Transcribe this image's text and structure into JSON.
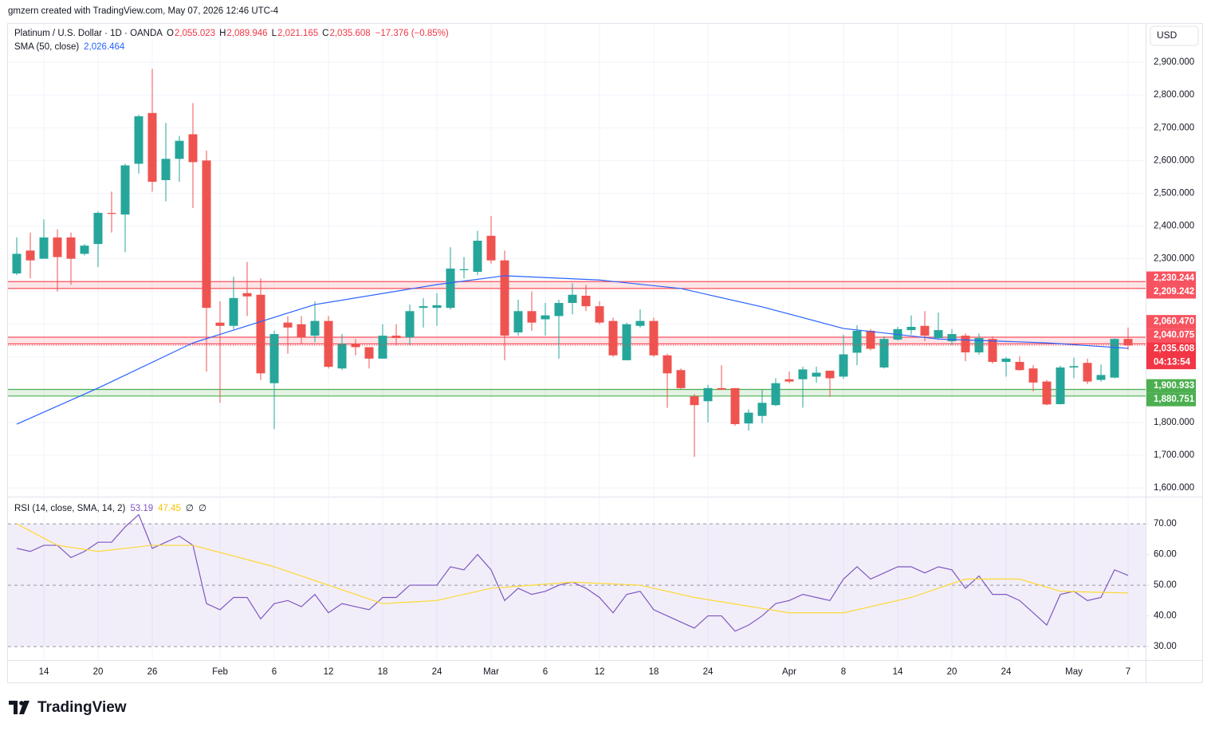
{
  "header": "gmzern created with TradingView.com, May 07, 2026 12:46 UTC-4",
  "brand": "TradingView",
  "chart_data": {
    "type": "candlestick",
    "currency": "USD",
    "categories": [
      null,
      null,
      "14",
      null,
      null,
      null,
      "20",
      null,
      null,
      null,
      "26",
      null,
      null,
      null,
      null,
      "Feb",
      null,
      null,
      null,
      "6",
      null,
      null,
      null,
      "12",
      null,
      null,
      null,
      "18",
      null,
      null,
      null,
      "24",
      null,
      null,
      null,
      "Mar",
      null,
      null,
      null,
      "6",
      null,
      null,
      null,
      "12",
      null,
      null,
      null,
      "18",
      null,
      null,
      null,
      "24",
      null,
      null,
      null,
      null,
      null,
      "Apr",
      null,
      null,
      null,
      "8",
      null,
      null,
      null,
      "14",
      null,
      null,
      null,
      "20",
      null,
      null,
      null,
      "24",
      null,
      null,
      null,
      null,
      "May",
      null,
      null,
      null,
      "7"
    ],
    "open": [
      2255,
      2325,
      2300,
      2365,
      2365,
      2315,
      2345,
      2440,
      2435,
      2590,
      2745,
      2540,
      2605,
      2680,
      2600,
      2105,
      2095,
      2195,
      2190,
      1920,
      2105,
      2100,
      2065,
      2110,
      1965,
      2040,
      2030,
      1995,
      2065,
      2060,
      2150,
      2150,
      2150,
      2265,
      2260,
      2370,
      2295,
      2075,
      2140,
      2115,
      2125,
      2165,
      2187,
      2155,
      2110,
      1990,
      2095,
      2110,
      2005,
      1960,
      1880,
      1865,
      1905,
      1905,
      1797,
      1820,
      1853,
      1932,
      1932,
      1940,
      1958,
      1940,
      2013,
      2080,
      1968,
      2053,
      2082,
      2095,
      2058,
      2048,
      2065,
      2014,
      2055,
      1985,
      1985,
      1965,
      1925,
      1856,
      1968,
      1982,
      1930,
      1937,
      2055.023
    ],
    "high": [
      2365,
      2380,
      2420,
      2390,
      2380,
      2345,
      2445,
      2505,
      2590,
      2740,
      2880,
      2715,
      2675,
      2775,
      2630,
      2170,
      2245,
      2290,
      2240,
      2080,
      2125,
      2125,
      2170,
      2125,
      2070,
      2055,
      2030,
      2100,
      2100,
      2160,
      2180,
      2195,
      2335,
      2305,
      2385,
      2430,
      2325,
      2175,
      2200,
      2165,
      2175,
      2225,
      2220,
      2170,
      2120,
      2105,
      2145,
      2120,
      2010,
      1965,
      1887,
      1915,
      1975,
      1905,
      1840,
      1900,
      1935,
      1955,
      1970,
      1970,
      1958,
      2068,
      2097,
      2085,
      2063,
      2092,
      2127,
      2140,
      2136,
      2085,
      2072,
      2072,
      2063,
      2000,
      2002,
      1975,
      1930,
      1973,
      1998,
      1995,
      1977,
      2057,
      2089.946
    ],
    "low": [
      2250,
      2240,
      2300,
      2200,
      2220,
      2310,
      2275,
      2380,
      2320,
      2560,
      2505,
      2475,
      2535,
      2455,
      1955,
      1860,
      2085,
      2125,
      1930,
      1780,
      2010,
      2040,
      2045,
      1965,
      1960,
      2005,
      1965,
      1995,
      2035,
      2035,
      2090,
      2095,
      2145,
      2240,
      2250,
      2285,
      1990,
      2065,
      2080,
      2065,
      1995,
      2130,
      2140,
      2100,
      2000,
      1990,
      2090,
      2000,
      1845,
      1902,
      1695,
      1800,
      1900,
      1790,
      1775,
      1798,
      1850,
      1920,
      1845,
      1922,
      1878,
      1933,
      1975,
      2020,
      1965,
      2050,
      2068,
      2048,
      2053,
      2036,
      1987,
      2007,
      1980,
      1940,
      1958,
      1895,
      1853,
      1855,
      1935,
      1917,
      1925,
      1935,
      2021.165
    ],
    "close": [
      2315,
      2295,
      2365,
      2305,
      2300,
      2340,
      2440,
      2437,
      2585,
      2735,
      2535,
      2605,
      2660,
      2595,
      2150,
      2095,
      2180,
      2185,
      1950,
      2070,
      2090,
      2060,
      2110,
      1970,
      2040,
      2030,
      1995,
      2065,
      2058,
      2140,
      2155,
      2158,
      2270,
      2268,
      2355,
      2295,
      2065,
      2140,
      2105,
      2127,
      2165,
      2190,
      2155,
      2105,
      2005,
      2100,
      2110,
      2005,
      1950,
      1905,
      1853,
      1905,
      1900,
      1795,
      1830,
      1860,
      1920,
      1925,
      1962,
      1952,
      1935,
      2008,
      2080,
      2025,
      2055,
      2085,
      2092,
      2065,
      2082,
      2070,
      2014,
      2058,
      1985,
      1995,
      1960,
      1922,
      1855,
      1968,
      1972,
      1925,
      1945,
      2055,
      2035.608
    ],
    "up_color": "#26a69a",
    "down_color": "#ef5350",
    "ylim": [
      1576,
      3017
    ],
    "yticks": [
      {
        "value": 1600,
        "label": "1,600.000"
      },
      {
        "value": 1700,
        "label": "1,700.000"
      },
      {
        "value": 1800,
        "label": "1,800.000"
      },
      {
        "value": 1900,
        "label": "1,900.000"
      },
      {
        "value": 2000,
        "label": "2,000.000"
      },
      {
        "value": 2100,
        "label": "2,100.000"
      },
      {
        "value": 2200,
        "label": "2,200.000"
      },
      {
        "value": 2300,
        "label": "2,300.000"
      },
      {
        "value": 2400,
        "label": "2,400.000"
      },
      {
        "value": 2500,
        "label": "2,500.000"
      },
      {
        "value": 2600,
        "label": "2,600.000"
      },
      {
        "value": 2700,
        "label": "2,700.000"
      },
      {
        "value": 2800,
        "label": "2,800.000"
      },
      {
        "value": 2900,
        "label": "2,900.000"
      }
    ],
    "grid": true,
    "legend": [
      {
        "text": "Platinum / U.S. Dollar · 1D · OANDA",
        "color": "#131722"
      },
      {
        "text": "O",
        "color": "#131722"
      },
      {
        "text": "2,055.023",
        "color": "#f23645"
      },
      {
        "text": "H",
        "color": "#131722"
      },
      {
        "text": "2,089.946",
        "color": "#f23645"
      },
      {
        "text": "L",
        "color": "#131722"
      },
      {
        "text": "2,021.165",
        "color": "#f23645"
      },
      {
        "text": "C",
        "color": "#131722"
      },
      {
        "text": "2,035.608",
        "color": "#f23645"
      },
      {
        "text": "−17.376 (−0.85%)",
        "color": "#f23645"
      }
    ],
    "sma": {
      "legend": [
        {
          "text": "SMA (50, close)",
          "color": "#131722"
        },
        {
          "text": "2,026.464",
          "color": "#2962ff"
        }
      ],
      "x": [
        0,
        6,
        13,
        22,
        31,
        36,
        43,
        49,
        55,
        61,
        68,
        76,
        82
      ],
      "values": [
        1795,
        1905,
        2043,
        2160,
        2221,
        2248,
        2235,
        2209,
        2153,
        2087,
        2055,
        2043,
        2026.464
      ],
      "color": "#2962ff"
    },
    "zones": [
      {
        "color": "#f7525f",
        "bounds": [
          {
            "value": 2230.244,
            "label": "2,230.244"
          },
          {
            "value": 2209.242,
            "label": "2,209.242"
          }
        ]
      },
      {
        "color": "#f7525f",
        "bounds": [
          {
            "value": 2060.47,
            "label": "2,060.470"
          },
          {
            "value": 2040.075,
            "label": "2,040.075"
          }
        ]
      },
      {
        "color": "#4caf50",
        "bounds": [
          {
            "value": 1900.933,
            "label": "1,900.933"
          },
          {
            "value": 1880.751,
            "label": "1,880.751"
          }
        ]
      }
    ],
    "last_label": "2,035.608",
    "countdown": "04:13:54",
    "last_color": "#f23645",
    "rsi": {
      "legend": [
        {
          "text": "RSI (14, close, SMA, 14, 2)",
          "color": "#131722"
        },
        {
          "text": "53.19",
          "color": "#7e57c2"
        },
        {
          "text": "47.45",
          "color": "#f5c400"
        },
        {
          "text": "∅",
          "color": "#131722"
        },
        {
          "text": "∅",
          "color": "#131722"
        }
      ],
      "values": [
        62,
        61,
        63,
        63,
        59,
        61,
        64,
        64,
        69,
        73,
        62,
        64,
        66,
        63,
        44,
        42,
        46,
        46,
        39,
        44,
        45,
        43,
        47,
        41,
        44,
        43,
        42,
        46,
        46,
        50,
        50,
        50,
        56,
        55,
        60,
        55,
        45,
        49,
        47,
        48,
        50,
        51,
        49,
        46,
        41,
        47,
        48,
        42,
        40,
        38,
        36,
        40,
        40,
        35,
        37,
        40,
        44,
        45,
        47,
        46,
        45,
        52,
        56,
        52,
        54,
        56,
        56,
        54,
        56,
        55,
        49,
        53,
        47,
        47,
        45,
        41,
        37,
        47,
        48,
        45,
        46,
        55,
        53.19
      ],
      "color": "#7e57c2",
      "sma": {
        "x": [
          0,
          3,
          6,
          10,
          13,
          19,
          27,
          31,
          35,
          41,
          46,
          50,
          57,
          61,
          66,
          70,
          74,
          77,
          82
        ],
        "values": [
          70,
          63,
          61,
          63,
          63,
          56,
          44,
          45,
          49,
          51,
          50,
          46,
          41,
          41,
          46,
          52,
          52,
          48,
          47.45
        ],
        "color": "#fdd835"
      },
      "ylim": [
        25.6,
        78.6
      ],
      "yticks": [
        {
          "value": 30,
          "label": "30.00"
        },
        {
          "value": 40,
          "label": "40.00"
        },
        {
          "value": 50,
          "label": "50.00"
        },
        {
          "value": 60,
          "label": "60.00"
        },
        {
          "value": 70,
          "label": "70.00"
        }
      ],
      "levels": [
        70,
        50,
        30
      ],
      "band_color": "#7e57c2"
    }
  }
}
